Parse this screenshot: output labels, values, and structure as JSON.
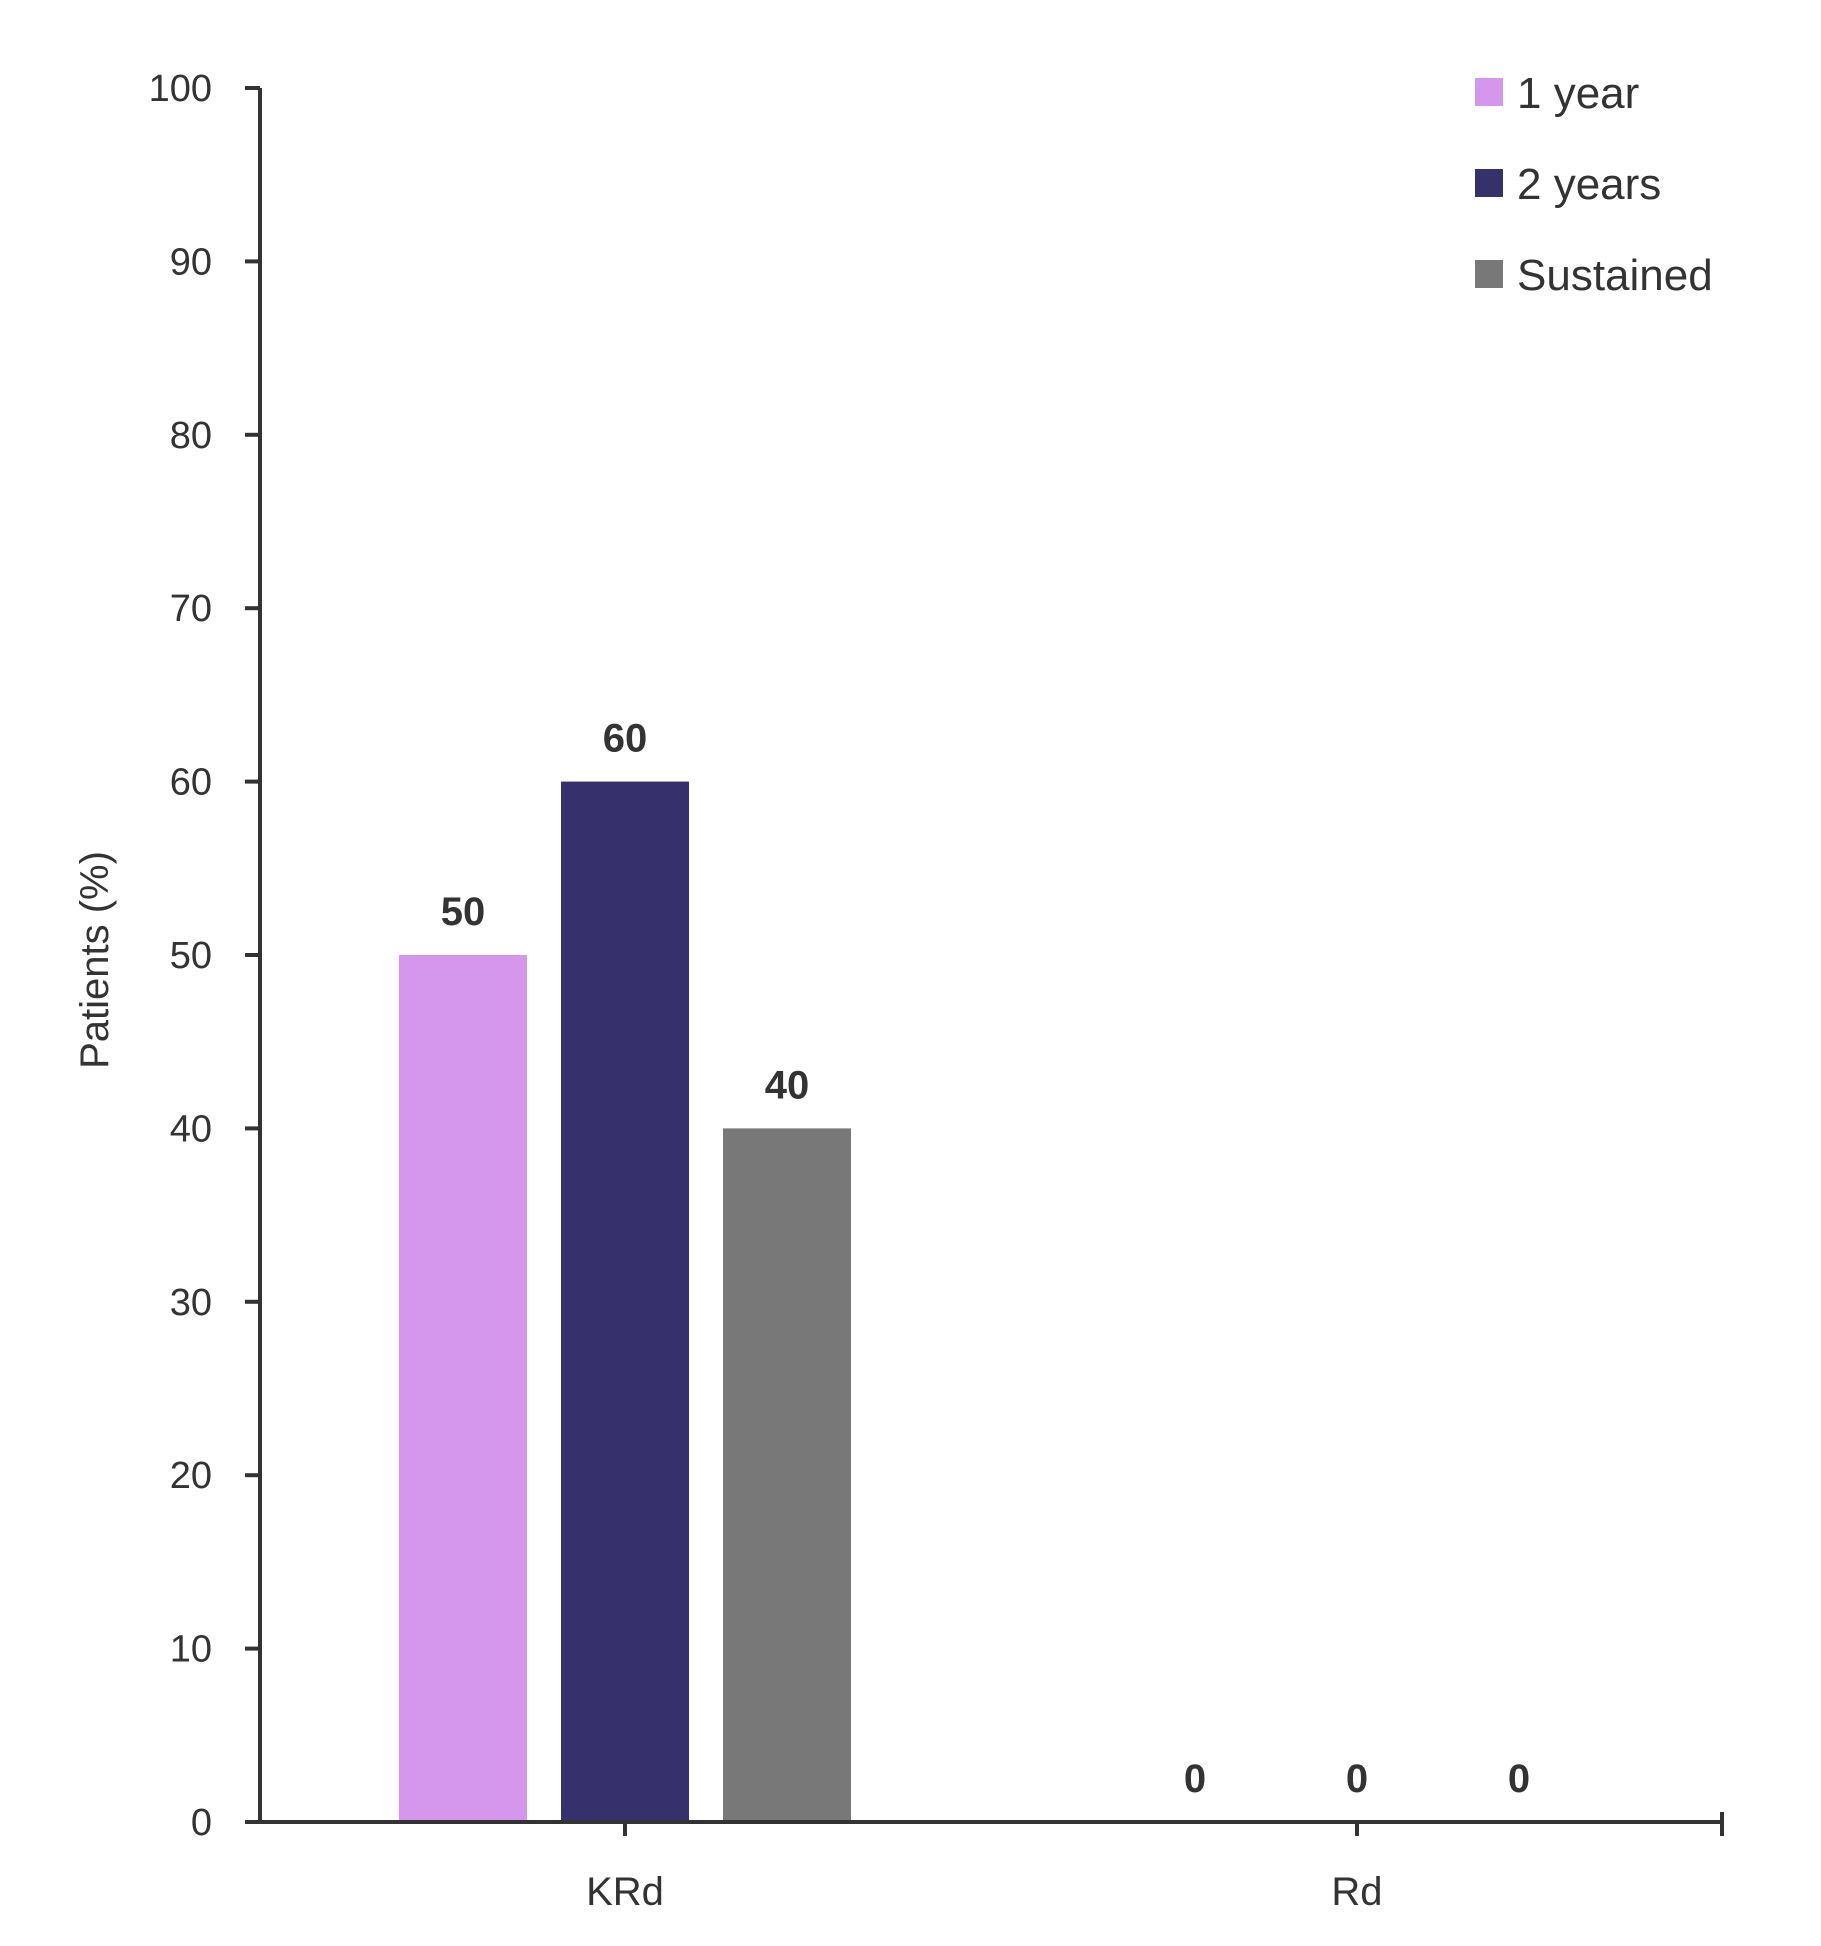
{
  "chart_data": {
    "type": "bar",
    "title": "",
    "xlabel": "",
    "ylabel": "Patients (%)",
    "ylim": [
      0,
      100
    ],
    "yticks": [
      "0",
      "10",
      "20",
      "30",
      "40",
      "50",
      "60",
      "70",
      "80",
      "90",
      "100"
    ],
    "categories": [
      "KRd",
      "Rd"
    ],
    "series": [
      {
        "name": "1 year",
        "color": "#d597ee",
        "values": [
          50,
          0
        ],
        "labels": [
          "50",
          "0"
        ]
      },
      {
        "name": "2 years",
        "color": "#36306d",
        "values": [
          60,
          0
        ],
        "labels": [
          "60",
          "0"
        ]
      },
      {
        "name": "Sustained",
        "color": "#787878",
        "values": [
          40,
          0
        ],
        "labels": [
          "40",
          "0"
        ]
      }
    ],
    "legend_position": "top-right",
    "grid": false,
    "axis_color": "#333333"
  }
}
